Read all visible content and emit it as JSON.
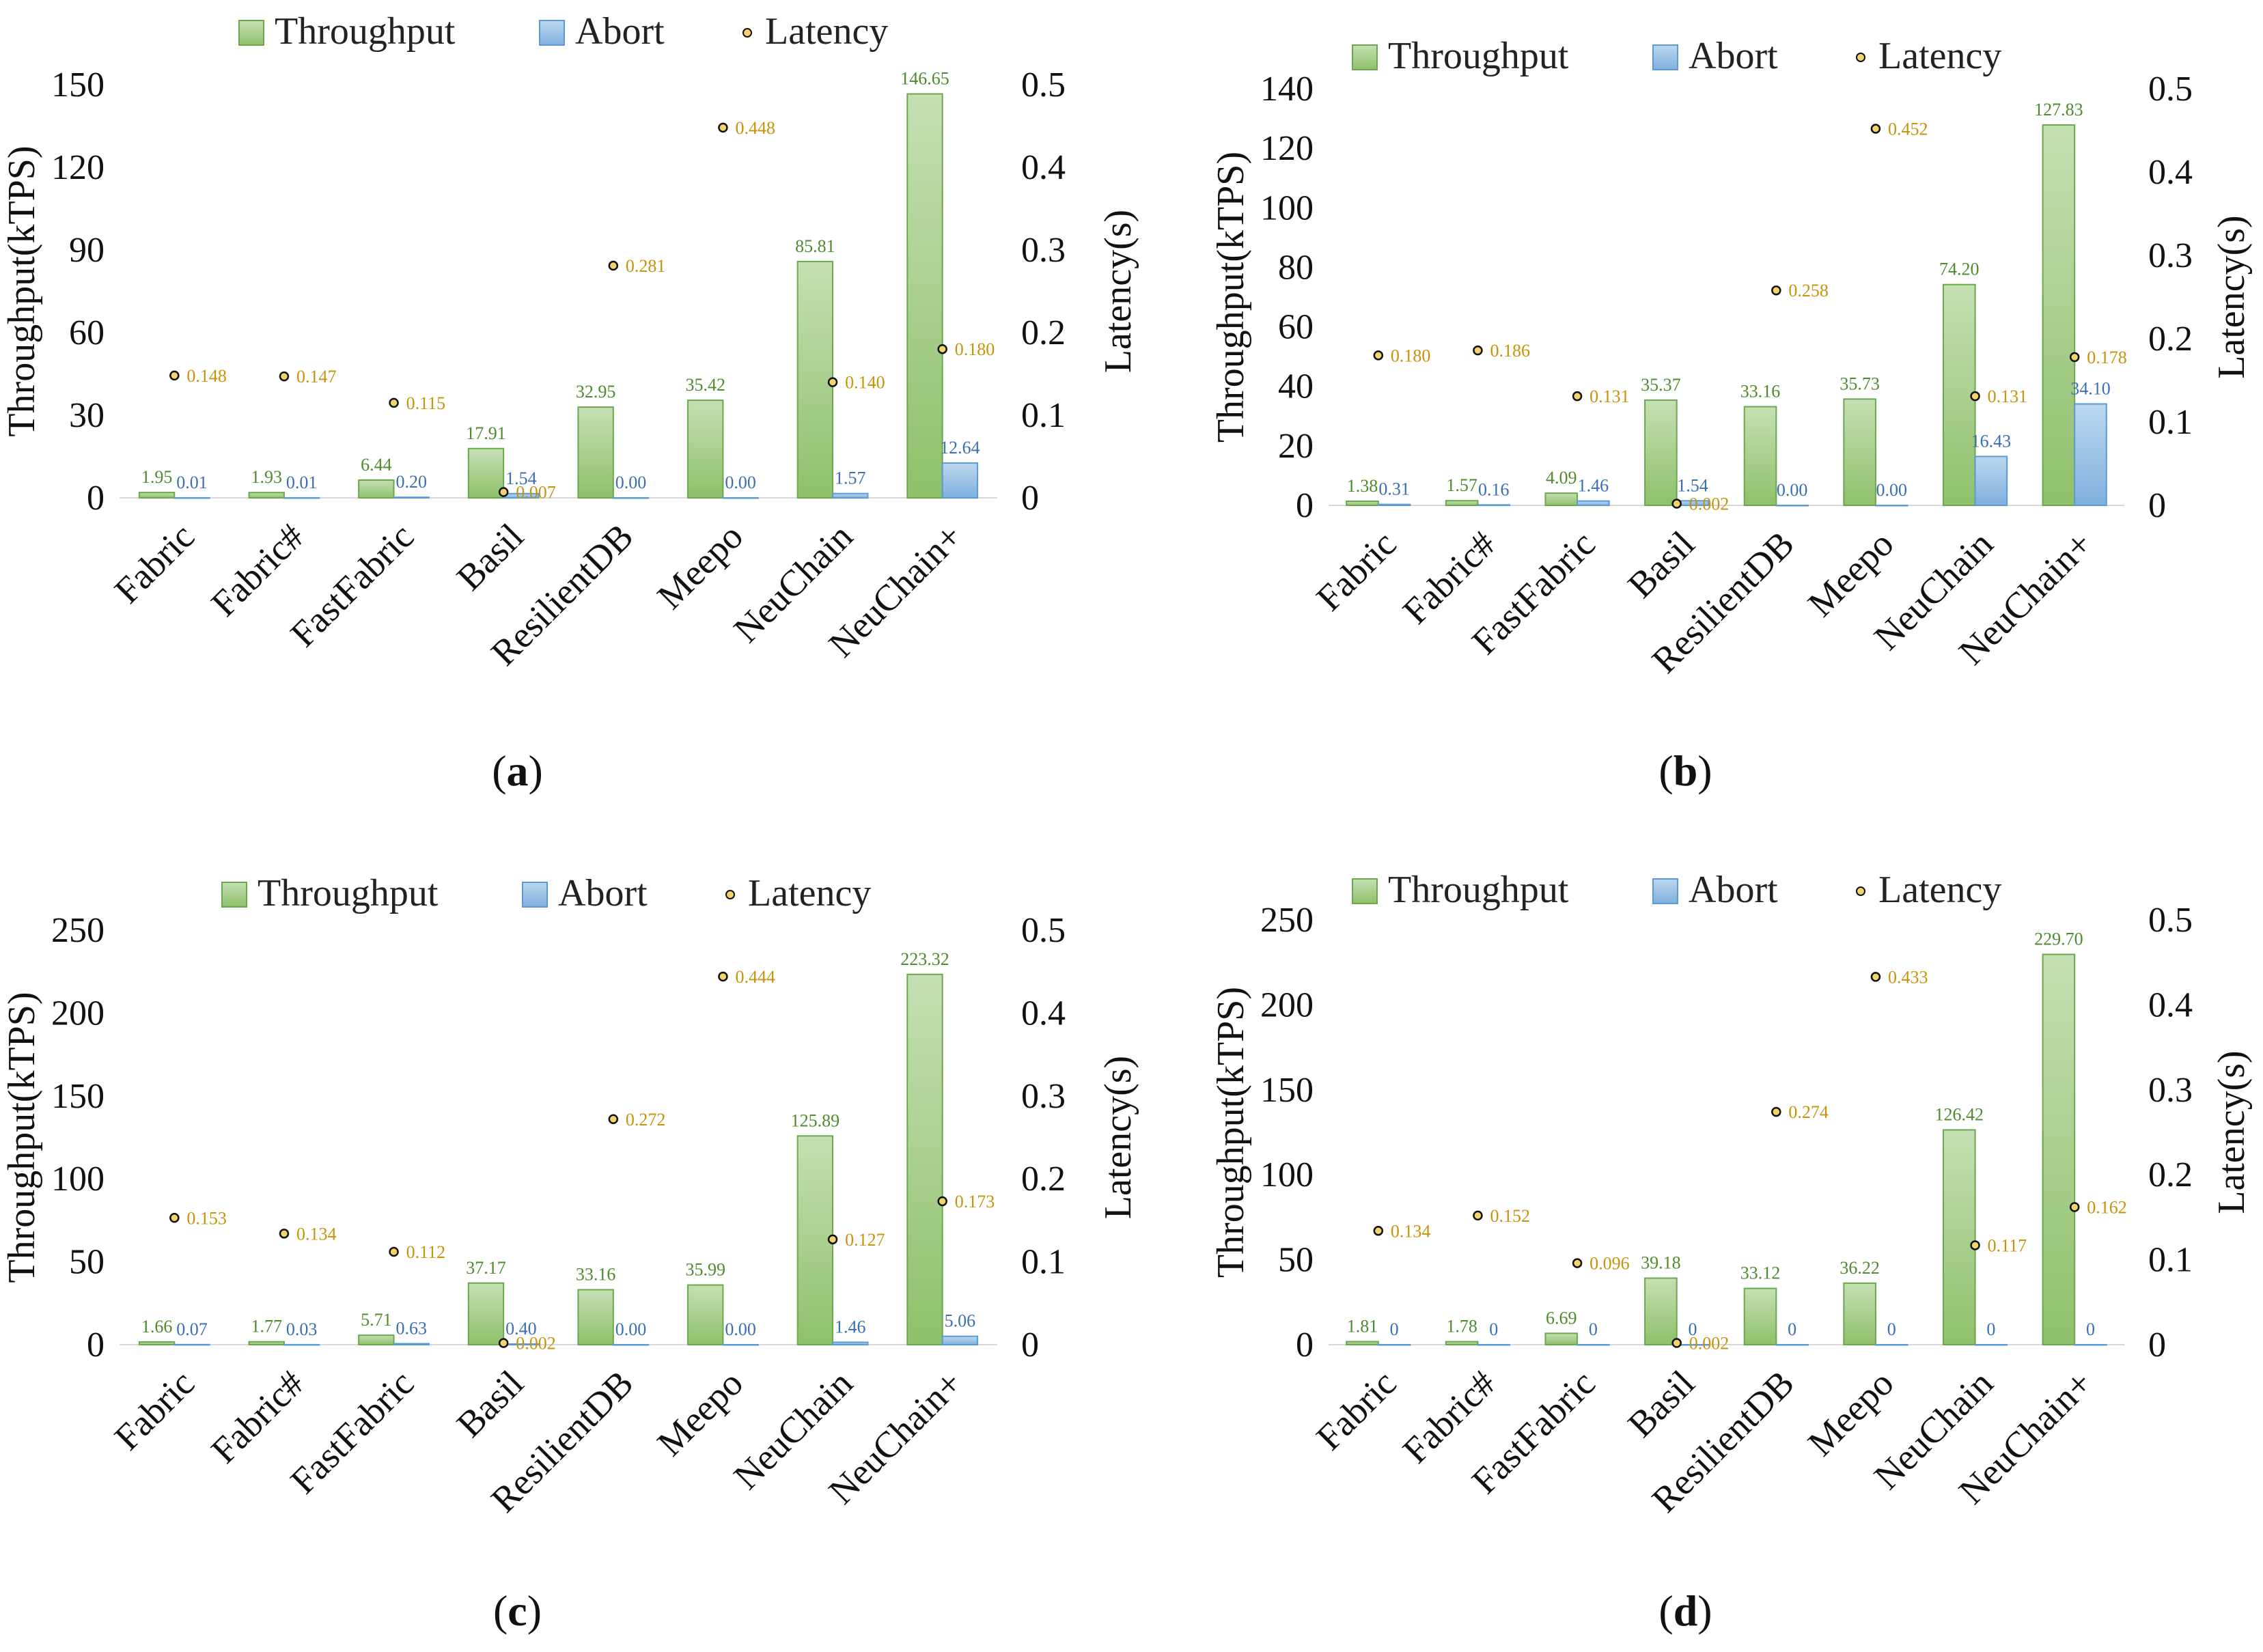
{
  "chart_data": [
    {
      "type": "bar",
      "panel_label": "a",
      "categories": [
        "Fabric",
        "Fabric#",
        "FastFabric",
        "Basil",
        "ResilientDB",
        "Meepo",
        "NeuChain",
        "NeuChain+"
      ],
      "series": [
        {
          "name": "Throughput",
          "axis": "left",
          "values": [
            1.95,
            1.93,
            6.44,
            17.91,
            32.95,
            35.42,
            85.81,
            146.65
          ],
          "labels": [
            "1.95",
            "1.93",
            "6.44",
            "17.91",
            "32.95",
            "35.42",
            "85.81",
            "146.65"
          ]
        },
        {
          "name": "Abort",
          "axis": "left",
          "values": [
            0.01,
            0.01,
            0.2,
            1.54,
            0.0,
            0.0,
            1.57,
            12.64
          ],
          "labels": [
            "0.01",
            "0.01",
            "0.20",
            "1.54",
            "0.00",
            "0.00",
            "1.57",
            "12.64"
          ]
        },
        {
          "name": "Latency",
          "axis": "right",
          "values": [
            0.148,
            0.147,
            0.115,
            0.007,
            0.281,
            0.448,
            0.14,
            0.18
          ],
          "labels": [
            "0.148",
            "0.147",
            "0.115",
            "0.007",
            "0.281",
            "0.448",
            "0.140",
            "0.180"
          ]
        }
      ],
      "ylabel": "Throughput(kTPS)",
      "y2label": "Latency(s)",
      "ylim": [
        0,
        150
      ],
      "yticks": [
        "0",
        "30",
        "60",
        "90",
        "120",
        "150"
      ],
      "y2lim": [
        0,
        0.5
      ],
      "y2ticks": [
        "0",
        "0.1",
        "0.2",
        "0.3",
        "0.4",
        "0.5"
      ],
      "legend": [
        "Throughput",
        "Abort",
        "Latency"
      ],
      "legend_position": "top"
    },
    {
      "type": "bar",
      "panel_label": "b",
      "categories": [
        "Fabric",
        "Fabric#",
        "FastFabric",
        "Basil",
        "ResilientDB",
        "Meepo",
        "NeuChain",
        "NeuChain+"
      ],
      "series": [
        {
          "name": "Throughput",
          "axis": "left",
          "values": [
            1.38,
            1.57,
            4.09,
            35.37,
            33.16,
            35.73,
            74.2,
            127.83
          ],
          "labels": [
            "1.38",
            "1.57",
            "4.09",
            "35.37",
            "33.16",
            "35.73",
            "74.20",
            "127.83"
          ]
        },
        {
          "name": "Abort",
          "axis": "left",
          "values": [
            0.31,
            0.16,
            1.46,
            1.54,
            0.0,
            0.0,
            16.43,
            34.1
          ],
          "labels": [
            "0.31",
            "0.16",
            "1.46",
            "1.54",
            "0.00",
            "0.00",
            "16.43",
            "34.10"
          ]
        },
        {
          "name": "Latency",
          "axis": "right",
          "values": [
            0.18,
            0.186,
            0.131,
            0.002,
            0.258,
            0.452,
            0.131,
            0.178
          ],
          "labels": [
            "0.180",
            "0.186",
            "0.131",
            "0.002",
            "0.258",
            "0.452",
            "0.131",
            "0.178"
          ]
        }
      ],
      "ylabel": "Throughput(kTPS)",
      "y2label": "Latency(s)",
      "ylim": [
        0,
        140
      ],
      "yticks": [
        "0",
        "20",
        "40",
        "60",
        "80",
        "100",
        "120",
        "140"
      ],
      "y2lim": [
        0,
        0.5
      ],
      "y2ticks": [
        "0",
        "0.1",
        "0.2",
        "0.3",
        "0.4",
        "0.5"
      ],
      "legend": [
        "Throughput",
        "Abort",
        "Latency"
      ],
      "legend_position": "top"
    },
    {
      "type": "bar",
      "panel_label": "c",
      "categories": [
        "Fabric",
        "Fabric#",
        "FastFabric",
        "Basil",
        "ResilientDB",
        "Meepo",
        "NeuChain",
        "NeuChain+"
      ],
      "series": [
        {
          "name": "Throughput",
          "axis": "left",
          "values": [
            1.66,
            1.77,
            5.71,
            37.17,
            33.16,
            35.99,
            125.89,
            223.32
          ],
          "labels": [
            "1.66",
            "1.77",
            "5.71",
            "37.17",
            "33.16",
            "35.99",
            "125.89",
            "223.32"
          ]
        },
        {
          "name": "Abort",
          "axis": "left",
          "values": [
            0.07,
            0.03,
            0.63,
            0.4,
            0.0,
            0.0,
            1.46,
            5.06
          ],
          "labels": [
            "0.07",
            "0.03",
            "0.63",
            "0.40",
            "0.00",
            "0.00",
            "1.46",
            "5.06"
          ]
        },
        {
          "name": "Latency",
          "axis": "right",
          "values": [
            0.153,
            0.134,
            0.112,
            0.002,
            0.272,
            0.444,
            0.127,
            0.173
          ],
          "labels": [
            "0.153",
            "0.134",
            "0.112",
            "0.002",
            "0.272",
            "0.444",
            "0.127",
            "0.173"
          ]
        }
      ],
      "ylabel": "Throughput(kTPS)",
      "y2label": "Latency(s)",
      "ylim": [
        0,
        250
      ],
      "yticks": [
        "0",
        "50",
        "100",
        "150",
        "200",
        "250"
      ],
      "y2lim": [
        0,
        0.5
      ],
      "y2ticks": [
        "0",
        "0.1",
        "0.2",
        "0.3",
        "0.4",
        "0.5"
      ],
      "legend": [
        "Throughput",
        "Abort",
        "Latency"
      ],
      "legend_position": "top"
    },
    {
      "type": "bar",
      "panel_label": "d",
      "categories": [
        "Fabric",
        "Fabric#",
        "FastFabric",
        "Basil",
        "ResilientDB",
        "Meepo",
        "NeuChain",
        "NeuChain+"
      ],
      "series": [
        {
          "name": "Throughput",
          "axis": "left",
          "values": [
            1.81,
            1.78,
            6.69,
            39.18,
            33.12,
            36.22,
            126.42,
            229.7
          ],
          "labels": [
            "1.81",
            "1.78",
            "6.69",
            "39.18",
            "33.12",
            "36.22",
            "126.42",
            "229.70"
          ]
        },
        {
          "name": "Abort",
          "axis": "left",
          "values": [
            0,
            0,
            0,
            0,
            0,
            0,
            0,
            0
          ],
          "labels": [
            "0",
            "0",
            "0",
            "0",
            "0",
            "0",
            "0",
            "0"
          ]
        },
        {
          "name": "Latency",
          "axis": "right",
          "values": [
            0.134,
            0.152,
            0.096,
            0.002,
            0.274,
            0.433,
            0.117,
            0.162
          ],
          "labels": [
            "0.134",
            "0.152",
            "0.096",
            "0.002",
            "0.274",
            "0.433",
            "0.117",
            "0.162"
          ]
        }
      ],
      "ylabel": "Throughput(kTPS)",
      "y2label": "Latency(s)",
      "ylim": [
        0,
        250
      ],
      "yticks": [
        "0",
        "50",
        "100",
        "150",
        "200",
        "250"
      ],
      "y2lim": [
        0,
        0.5
      ],
      "y2ticks": [
        "0",
        "0.1",
        "0.2",
        "0.3",
        "0.4",
        "0.5"
      ],
      "legend": [
        "Throughput",
        "Abort",
        "Latency"
      ],
      "legend_position": "top"
    }
  ],
  "colors": {
    "throughput_fill": "#a9d08e",
    "throughput_edge": "#6aa84f",
    "abort_fill": "#9dc3e6",
    "abort_edge": "#5b9bd5",
    "latency_marker": "#111111",
    "latency_label": "#c6930a",
    "throughput_label": "#4f8a2c",
    "abort_label": "#3a6fb5"
  }
}
